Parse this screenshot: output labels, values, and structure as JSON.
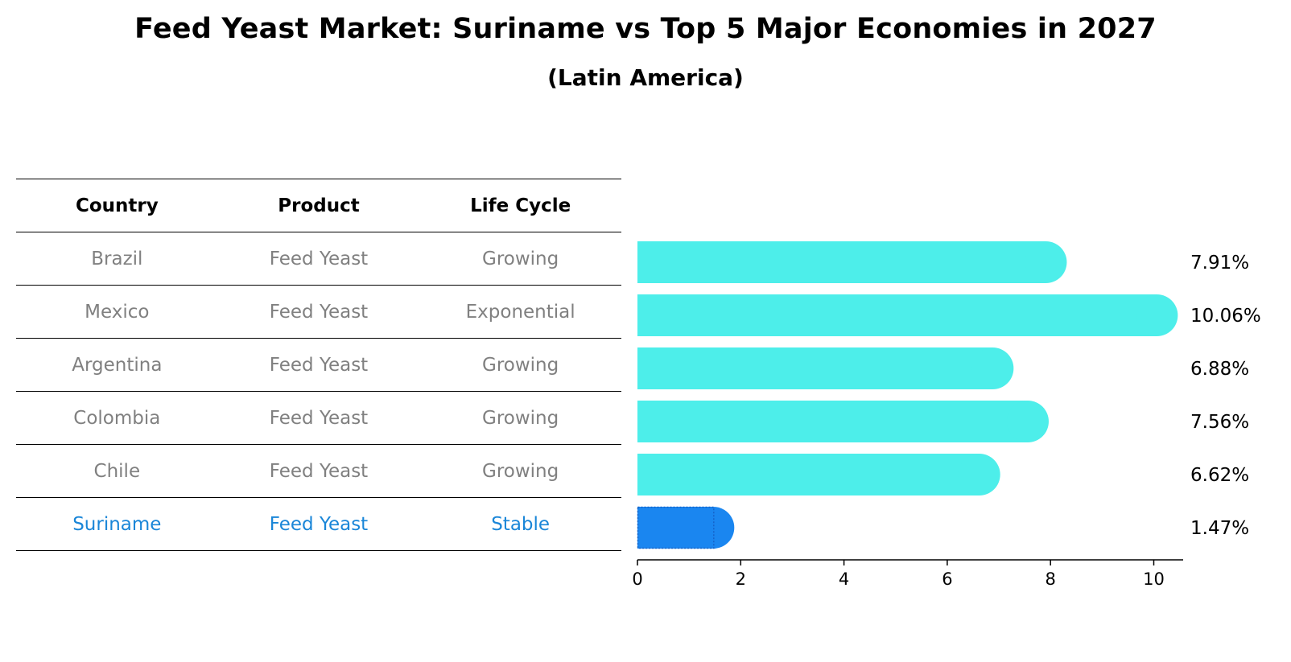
{
  "title": "Feed Yeast Market: Suriname vs Top 5 Major Economies in 2027",
  "subtitle": "(Latin America)",
  "table": {
    "headers": [
      "Country",
      "Product",
      "Life Cycle"
    ],
    "rows": [
      [
        "Brazil",
        "Feed Yeast",
        "Growing"
      ],
      [
        "Mexico",
        "Feed Yeast",
        "Exponential"
      ],
      [
        "Argentina",
        "Feed Yeast",
        "Growing"
      ],
      [
        "Colombia",
        "Feed Yeast",
        "Growing"
      ],
      [
        "Chile",
        "Feed Yeast",
        "Growing"
      ],
      [
        "Suriname",
        "Feed Yeast",
        "Stable"
      ]
    ]
  },
  "colors": {
    "bar": "#4deeea",
    "highlight": "#1a86f0",
    "highlight_text": "#1a86d8",
    "muted_text": "#808080"
  },
  "chart_data": {
    "type": "bar",
    "orientation": "horizontal",
    "categories": [
      "Brazil",
      "Mexico",
      "Argentina",
      "Colombia",
      "Chile",
      "Suriname"
    ],
    "values": [
      7.91,
      10.06,
      6.88,
      7.56,
      6.62,
      1.47
    ],
    "value_labels": [
      "7.91%",
      "10.06%",
      "6.88%",
      "7.56%",
      "6.62%",
      "1.47%"
    ],
    "highlight_category": "Suriname",
    "xlim": [
      0,
      10.6
    ],
    "xticks": [
      0,
      2,
      4,
      6,
      8,
      10
    ],
    "xlabel": "",
    "ylabel": "",
    "grid": false
  }
}
